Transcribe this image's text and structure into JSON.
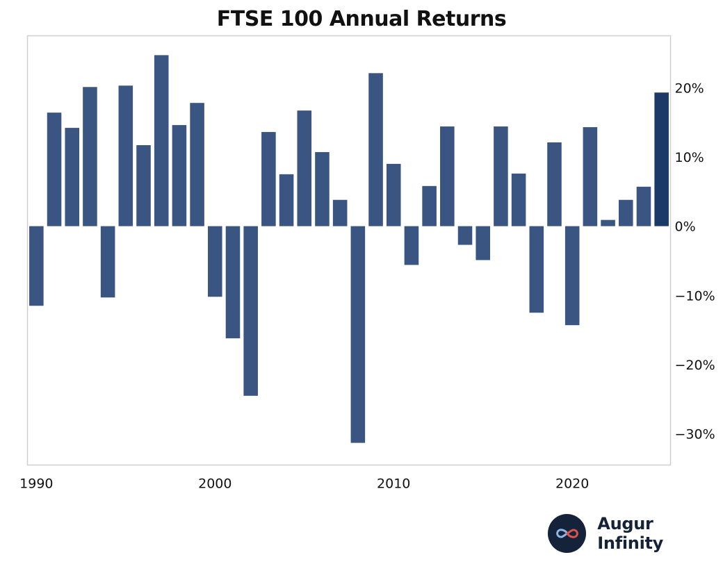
{
  "chart_data": {
    "type": "bar",
    "title": "FTSE 100 Annual Returns",
    "xlabel": "",
    "ylabel": "",
    "ylim": [
      -34.5,
      27.5
    ],
    "xlim": [
      1989.5,
      2025.5
    ],
    "x_ticks": [
      1990,
      2000,
      2010,
      2020
    ],
    "y_ticks": [
      20,
      10,
      0,
      -10,
      -20,
      -30
    ],
    "y_tick_labels": [
      "20%",
      "10%",
      "0%",
      "−10%",
      "−20%",
      "−30%"
    ],
    "y_axis_position": "right",
    "grid": false,
    "bar_color": "#3a5582",
    "highlight_color": "#1b3a68",
    "highlight_year": 2025,
    "years": [
      1990,
      1991,
      1992,
      1993,
      1994,
      1995,
      1996,
      1997,
      1998,
      1999,
      2000,
      2001,
      2002,
      2003,
      2004,
      2005,
      2006,
      2007,
      2008,
      2009,
      2010,
      2011,
      2012,
      2013,
      2014,
      2015,
      2016,
      2017,
      2018,
      2019,
      2020,
      2021,
      2022,
      2023,
      2024,
      2025
    ],
    "values": [
      -11.5,
      16.4,
      14.2,
      20.1,
      -10.3,
      20.3,
      11.7,
      24.7,
      14.6,
      17.8,
      -10.2,
      -16.2,
      -24.5,
      13.6,
      7.5,
      16.7,
      10.7,
      3.8,
      -31.3,
      22.1,
      9.0,
      -5.6,
      5.8,
      14.4,
      -2.7,
      -4.9,
      14.4,
      7.6,
      -12.5,
      12.1,
      -14.3,
      14.3,
      0.9,
      3.8,
      5.7,
      19.3
    ]
  },
  "branding": {
    "name": "Augur Infinity",
    "logo_icon": "infinity-icon",
    "logo_color": "#14233a"
  }
}
